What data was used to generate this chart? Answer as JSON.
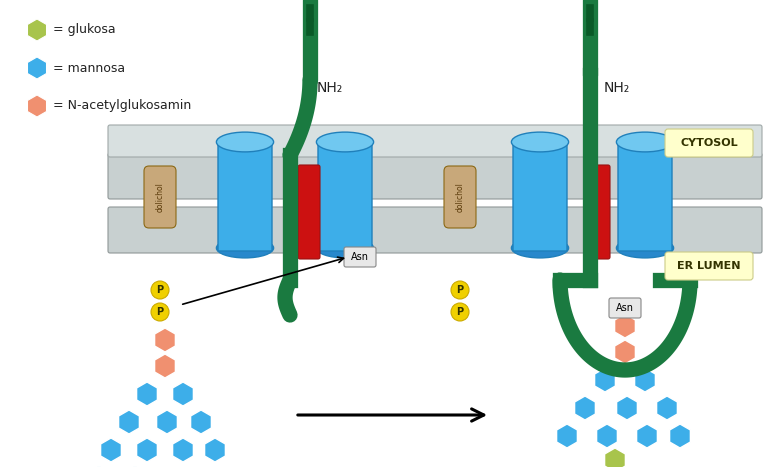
{
  "bg_color": "#ffffff",
  "legend": {
    "glukosa_color": "#a8c44c",
    "mannosa_color": "#3daee9",
    "nacetyl_color": "#f09070",
    "glukosa_label": "= glukosa",
    "mannosa_label": "= mannosa",
    "nacetyl_label": "= N-acetylglukosamin"
  },
  "dolichol_color": "#c8a87a",
  "dolichol_text_color": "#5a3a0a",
  "P_color": "#f0d000",
  "Asn_color": "#e8e8e8",
  "Asn_border": "#888888",
  "green_color": "#1a7a40",
  "red_color": "#cc1111",
  "blue_cyl_color": "#3daee9",
  "membrane_color": "#b8c0c0",
  "membrane_edge": "#909898"
}
